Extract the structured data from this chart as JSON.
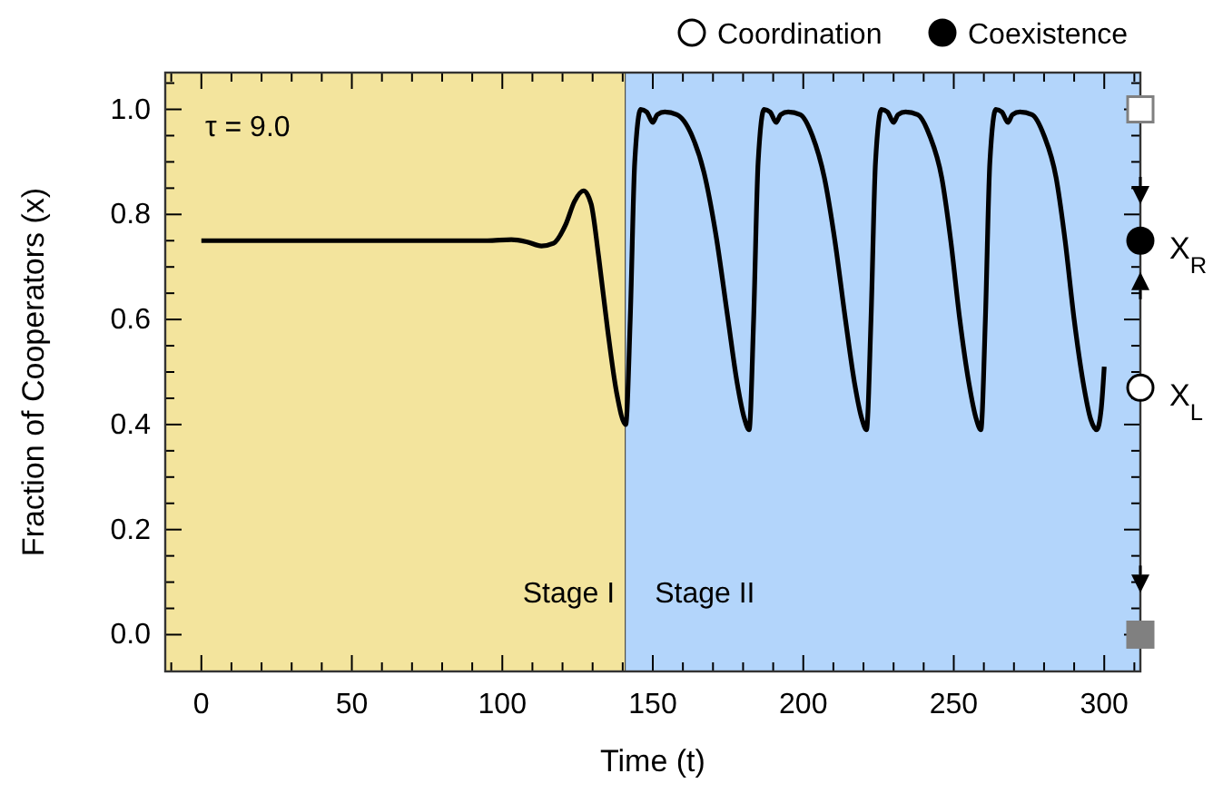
{
  "chart_data": {
    "type": "line",
    "xlabel": "Time (t)",
    "ylabel": "Fraction of Cooperators (x)",
    "xlim": [
      -12,
      312
    ],
    "ylim": [
      -0.07,
      1.07
    ],
    "xticks": [
      {
        "value": -10,
        "label": null
      },
      0,
      {
        "value": 10,
        "label": null
      },
      {
        "value": 20,
        "label": null
      },
      {
        "value": 30,
        "label": null
      },
      {
        "value": 40,
        "label": null
      },
      50,
      {
        "value": 60,
        "label": null
      },
      {
        "value": 70,
        "label": null
      },
      {
        "value": 80,
        "label": null
      },
      {
        "value": 90,
        "label": null
      },
      100,
      {
        "value": 110,
        "label": null
      },
      {
        "value": 120,
        "label": null
      },
      {
        "value": 130,
        "label": null
      },
      {
        "value": 140,
        "label": null
      },
      150,
      {
        "value": 160,
        "label": null
      },
      {
        "value": 170,
        "label": null
      },
      {
        "value": 180,
        "label": null
      },
      {
        "value": 190,
        "label": null
      },
      200,
      {
        "value": 210,
        "label": null
      },
      {
        "value": 220,
        "label": null
      },
      {
        "value": 230,
        "label": null
      },
      {
        "value": 240,
        "label": null
      },
      250,
      {
        "value": 260,
        "label": null
      },
      {
        "value": 270,
        "label": null
      },
      {
        "value": 280,
        "label": null
      },
      {
        "value": 290,
        "label": null
      },
      300,
      {
        "value": 310,
        "label": null
      }
    ],
    "yticks": [
      {
        "value": 0,
        "label": "0.0"
      },
      {
        "value": 0.05,
        "label": null
      },
      {
        "value": 0.1,
        "label": null
      },
      {
        "value": 0.15,
        "label": null
      },
      {
        "value": 0.2,
        "label": "0.2"
      },
      {
        "value": 0.25,
        "label": null
      },
      {
        "value": 0.3,
        "label": null
      },
      {
        "value": 0.35,
        "label": null
      },
      {
        "value": 0.4,
        "label": "0.4"
      },
      {
        "value": 0.45,
        "label": null
      },
      {
        "value": 0.5,
        "label": null
      },
      {
        "value": 0.55,
        "label": null
      },
      {
        "value": 0.6,
        "label": "0.6"
      },
      {
        "value": 0.65,
        "label": null
      },
      {
        "value": 0.7,
        "label": null
      },
      {
        "value": 0.75,
        "label": null
      },
      {
        "value": 0.8,
        "label": "0.8"
      },
      {
        "value": 0.85,
        "label": null
      },
      {
        "value": 0.9,
        "label": null
      },
      {
        "value": 0.95,
        "label": null
      },
      {
        "value": 1,
        "label": "1.0"
      },
      {
        "value": 1.05,
        "label": null
      }
    ],
    "legend": "top right",
    "bands": [
      {
        "axis": "x",
        "from": -12,
        "to": 141,
        "label": "Stage I",
        "color": "#f3e49d"
      },
      {
        "axis": "x",
        "from": 141,
        "to": 312,
        "label": "Stage II",
        "color": "#b3d5fb"
      }
    ],
    "annotations": [
      "τ = 9.0",
      {
        "text": "X$_{R}$",
        "x": 312,
        "y": 0.75
      },
      {
        "text": "X$_{L}$",
        "x": 312,
        "y": 0.47
      }
    ],
    "series": [
      {
        "color": "#000000",
        "marker": "none",
        "line_style": "solid",
        "x": [
          0,
          20,
          40,
          60,
          80,
          95,
          103,
          108,
          113,
          117,
          121,
          124,
          127,
          129.5,
          132,
          135,
          138,
          141,
          142.5,
          144,
          146,
          148,
          150,
          151.5,
          154,
          158,
          163,
          167,
          171,
          175,
          178,
          180.5,
          182,
          183.5,
          185,
          187,
          189,
          191,
          192.5,
          195,
          199,
          203,
          207,
          210.5,
          214,
          217,
          219.5,
          221,
          222.5,
          224,
          226,
          228,
          230,
          231.5,
          234,
          238,
          242,
          246,
          249,
          252,
          255,
          257.5,
          259,
          260.5,
          262,
          264,
          266,
          268,
          269.5,
          272,
          276,
          280,
          284,
          287,
          290,
          293,
          295.5,
          297.5,
          299,
          300
        ],
        "values": [
          0.75,
          0.75,
          0.75,
          0.75,
          0.75,
          0.75,
          0.752,
          0.748,
          0.74,
          0.745,
          0.78,
          0.825,
          0.845,
          0.82,
          0.72,
          0.58,
          0.46,
          0.4,
          0.6,
          0.9,
          1.0,
          0.995,
          0.975,
          0.99,
          0.995,
          0.99,
          0.95,
          0.88,
          0.76,
          0.6,
          0.48,
          0.41,
          0.39,
          0.6,
          0.9,
          1.0,
          0.995,
          0.975,
          0.99,
          0.995,
          0.99,
          0.95,
          0.87,
          0.75,
          0.6,
          0.48,
          0.41,
          0.39,
          0.6,
          0.9,
          1.0,
          0.995,
          0.975,
          0.99,
          0.995,
          0.99,
          0.95,
          0.87,
          0.75,
          0.6,
          0.48,
          0.41,
          0.39,
          0.6,
          0.9,
          1.0,
          0.995,
          0.975,
          0.99,
          0.995,
          0.99,
          0.95,
          0.87,
          0.75,
          0.6,
          0.48,
          0.41,
          0.39,
          0.43,
          0.51
        ]
      },
      {
        "type": "scatter",
        "name": "Coordination",
        "color": "#ffffff",
        "marker": "circle",
        "x": [
          312
        ],
        "values": [
          0.47
        ]
      },
      {
        "type": "scatter",
        "name": "Coexistence",
        "color": "#000000",
        "marker": "circle",
        "x": [
          312
        ],
        "values": [
          0.75
        ]
      },
      {
        "type": "scatter",
        "color": "#ffffff",
        "marker": "square",
        "x": [
          312
        ],
        "values": [
          1.0
        ]
      },
      {
        "type": "scatter",
        "color": "#808080",
        "marker": "square",
        "x": [
          312
        ],
        "values": [
          0.0
        ]
      }
    ]
  }
}
